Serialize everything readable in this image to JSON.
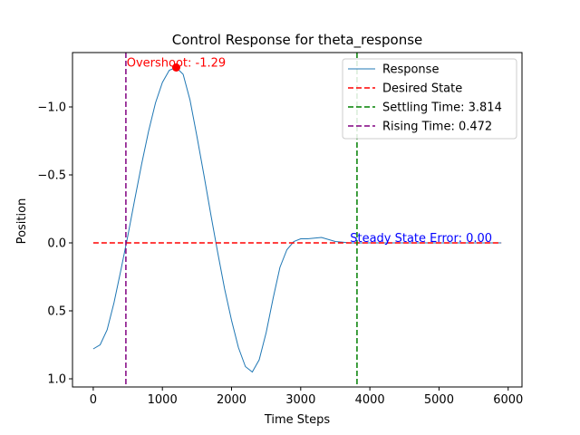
{
  "chart_data": {
    "type": "line",
    "title": "Control Response for theta_response",
    "xlabel": "Time Steps",
    "ylabel": "Position",
    "xlim": [
      -300,
      6200
    ],
    "ylim": [
      1.06,
      -1.4
    ],
    "y_axis_inverted": true,
    "grid": false,
    "legend_position": "top-right",
    "x_ticks": [
      0,
      1000,
      2000,
      3000,
      4000,
      5000,
      6000
    ],
    "x_tick_labels": [
      "0",
      "1000",
      "2000",
      "3000",
      "4000",
      "5000",
      "6000"
    ],
    "y_ticks": [
      -1.0,
      -0.5,
      0.0,
      0.5,
      1.0
    ],
    "y_tick_labels": [
      "−1.0",
      "−0.5",
      "0.0",
      "0.5",
      "1.0"
    ],
    "series": [
      {
        "name": "Response",
        "style": "solid",
        "color": "#1f77b4",
        "x": [
          0,
          100,
          200,
          300,
          400,
          500,
          600,
          700,
          800,
          900,
          1000,
          1100,
          1200,
          1300,
          1400,
          1500,
          1600,
          1700,
          1800,
          1900,
          2000,
          2100,
          2200,
          2300,
          2400,
          2500,
          2600,
          2700,
          2800,
          2900,
          3000,
          3100,
          3300,
          3500,
          3700,
          3800,
          4000,
          4500,
          5000,
          5500,
          5900
        ],
        "y": [
          0.78,
          0.75,
          0.64,
          0.44,
          0.2,
          -0.05,
          -0.32,
          -0.58,
          -0.82,
          -1.03,
          -1.18,
          -1.27,
          -1.29,
          -1.24,
          -1.05,
          -0.78,
          -0.5,
          -0.21,
          0.07,
          0.34,
          0.57,
          0.77,
          0.91,
          0.95,
          0.86,
          0.66,
          0.41,
          0.18,
          0.05,
          -0.01,
          -0.03,
          -0.03,
          -0.04,
          -0.01,
          0.0,
          0.0,
          0.0,
          0.0,
          0.0,
          0.0,
          0.0
        ]
      },
      {
        "name": "Desired State",
        "style": "dashed",
        "color": "#ff0000",
        "x": [
          0,
          5900
        ],
        "y": [
          0,
          0
        ]
      },
      {
        "name": "Settling Time: 3.814",
        "style": "dashed",
        "color": "#008000",
        "vertical_x": 3814
      },
      {
        "name": "Rising Time: 0.472",
        "style": "dashed",
        "color": "#800080",
        "vertical_x": 472
      }
    ],
    "peak_marker": {
      "x": 1200,
      "y": -1.29,
      "color": "#ff0000"
    },
    "annotations": [
      {
        "text": "Overshoot: -1.29",
        "x": 1200,
        "y": -1.29,
        "color": "#ff0000"
      },
      {
        "text": "Steady State Error: 0.00",
        "x": 3700,
        "y": 0.0,
        "color": "#0000ff"
      }
    ],
    "legend": [
      {
        "label": "Response",
        "color": "#1f77b4",
        "style": "solid"
      },
      {
        "label": "Desired State",
        "color": "#ff0000",
        "style": "dashed"
      },
      {
        "label": "Settling Time: 3.814",
        "color": "#008000",
        "style": "dashed"
      },
      {
        "label": "Rising Time: 0.472",
        "color": "#800080",
        "style": "dashed"
      }
    ]
  }
}
